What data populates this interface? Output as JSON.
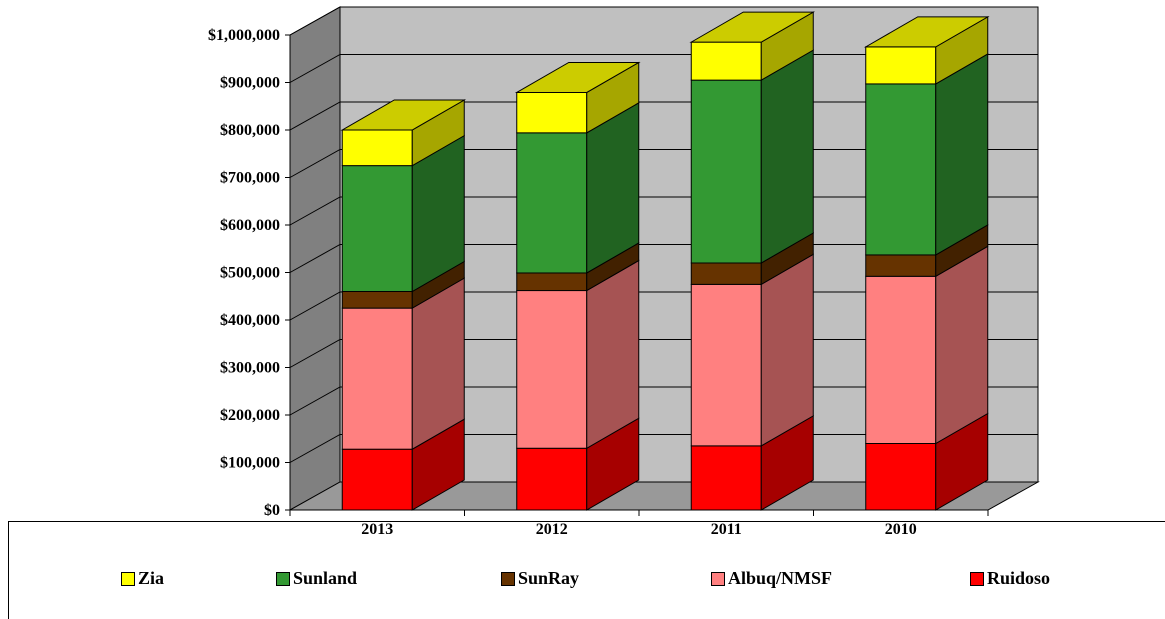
{
  "chart_data": {
    "type": "bar",
    "stacked": true,
    "three_d": true,
    "categories": [
      "2013",
      "2012",
      "2011",
      "2010"
    ],
    "series": [
      {
        "name": "Ruidoso",
        "values": [
          128000,
          130000,
          135000,
          140000
        ],
        "color": "#ff0000"
      },
      {
        "name": "Albuq/NMSF",
        "values": [
          297000,
          332000,
          340000,
          352000
        ],
        "color": "#ff8080"
      },
      {
        "name": "SunRay",
        "values": [
          35000,
          37000,
          45000,
          45000
        ],
        "color": "#663300"
      },
      {
        "name": "Sunland",
        "values": [
          265000,
          295000,
          385000,
          360000
        ],
        "color": "#339933"
      },
      {
        "name": "Zia",
        "values": [
          75000,
          85000,
          80000,
          78000
        ],
        "color": "#ffff00"
      }
    ],
    "y_ticks": [
      "$0",
      "$100,000",
      "$200,000",
      "$300,000",
      "$400,000",
      "$500,000",
      "$600,000",
      "$700,000",
      "$800,000",
      "$900,000",
      "$1,000,000"
    ],
    "ylim": [
      0,
      1000000
    ],
    "wall_color": "#c0c0c0",
    "side_wall_color": "#808080",
    "floor_color": "#999999",
    "legend_position": "bottom",
    "legend_order": [
      "Zia",
      "Sunland",
      "SunRay",
      "Albuq/NMSF",
      "Ruidoso"
    ]
  }
}
